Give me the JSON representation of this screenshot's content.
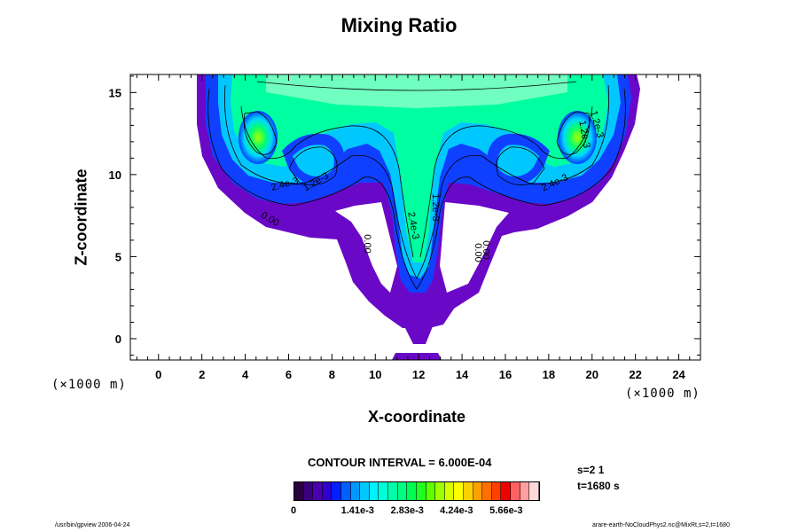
{
  "chart_data": {
    "type": "heatmap",
    "title": "Mixing Ratio",
    "xlabel": "X-coordinate",
    "ylabel": "Z-coordinate",
    "x_unit": "(×1000 m)",
    "y_unit": "(×1000 m)",
    "xlim": [
      -1.3,
      25.0
    ],
    "ylim": [
      -1.3,
      16.1
    ],
    "x_ticks": [
      0,
      2,
      4,
      6,
      8,
      10,
      12,
      14,
      16,
      18,
      20,
      22,
      24
    ],
    "y_ticks": [
      0,
      5,
      10,
      15
    ],
    "contour_interval": "CONTOUR INTERVAL = 6.000E-04",
    "colorbar": {
      "min": 0,
      "max": 0.007,
      "tick_labels": [
        "0",
        "1.41e-3",
        "2.83e-3",
        "4.24e-3",
        "5.66e-3"
      ],
      "colors": [
        "#2a003f",
        "#3a0080",
        "#4a00b0",
        "#3000d0",
        "#0020ff",
        "#0060ff",
        "#0098ff",
        "#00c8ff",
        "#00f0ff",
        "#00ffd8",
        "#00ffa8",
        "#00ff80",
        "#00ff50",
        "#20ff20",
        "#60ff00",
        "#a0ff00",
        "#d8ff00",
        "#ffff00",
        "#ffd000",
        "#ffa000",
        "#ff7000",
        "#ff4000",
        "#f00000",
        "#ff6060",
        "#ffa0a0",
        "#ffd8d8"
      ]
    },
    "contour_labels": [
      "2.4e-3",
      "1.2e-3",
      "0.00",
      "0.00",
      "2.4e-3",
      "1.2e-3",
      "0.00",
      "0.00",
      "2.4e-3",
      "1.2e-3",
      "1.2e-3"
    ]
  },
  "info": {
    "sample": "s=2 1",
    "time": "t=1680 s"
  },
  "footer": {
    "left": "/usr/bin/gpview 2006-04-24",
    "right": "arare-earth-NoCloudPhys2.nc@MixRt,s=2,t=1680"
  }
}
